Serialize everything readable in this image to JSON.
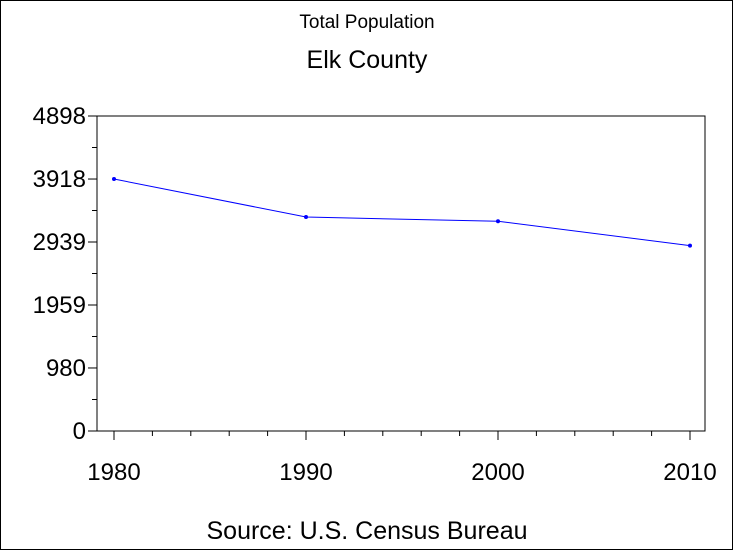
{
  "chart_data": {
    "type": "line",
    "title": "Total Population",
    "subtitle": "Elk County",
    "source": "Source: U.S. Census Bureau",
    "x": [
      1980,
      1990,
      2000,
      2010
    ],
    "series": [
      {
        "values": [
          3918,
          3327,
          3261,
          2882
        ]
      }
    ],
    "x_tick_labels": [
      "1980",
      "1990",
      "2000",
      "2010"
    ],
    "y_tick_values": [
      0,
      980,
      1959,
      2939,
      3918,
      4898
    ],
    "y_tick_labels": [
      "0",
      "980",
      "1959",
      "2939",
      "3918",
      "4898"
    ],
    "xlim": [
      1980,
      2010
    ],
    "ylim": [
      0,
      4898
    ],
    "grid": false,
    "line_color": "#0000ff",
    "marker_color": "#0000ff"
  }
}
